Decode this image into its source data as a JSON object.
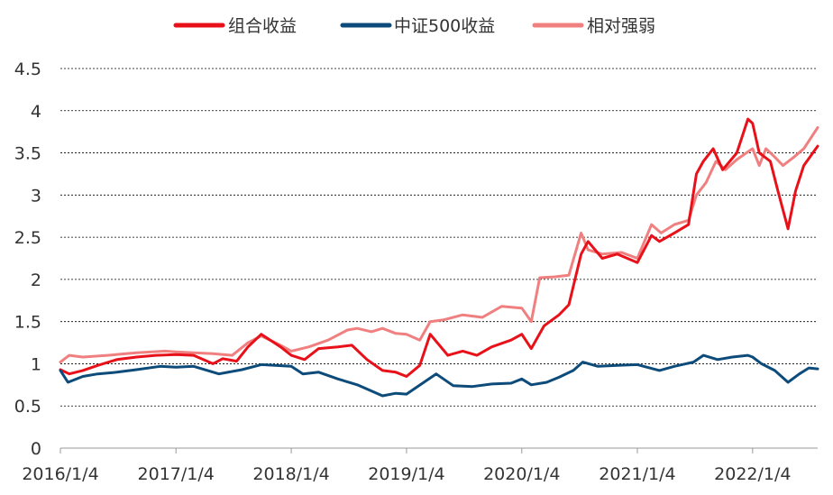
{
  "chart_data": {
    "type": "line",
    "title": "",
    "xlabel": "",
    "ylabel": "",
    "x_tick_labels": [
      "2016/1/4",
      "2017/1/4",
      "2018/1/4",
      "2019/1/4",
      "2020/1/4",
      "2021/1/4",
      "2022/1/4"
    ],
    "x_range": [
      "2016/1/4",
      "2022/7/29"
    ],
    "y_tick_labels": [
      "0",
      "0.5",
      "1",
      "1.5",
      "2",
      "2.5",
      "3",
      "3.5",
      "4",
      "4.5"
    ],
    "y_ticks": [
      0,
      0.5,
      1,
      1.5,
      2,
      2.5,
      3,
      3.5,
      4,
      4.5
    ],
    "ylim": [
      0,
      4.5
    ],
    "grid": "horizontal dashed",
    "legend_position": "top-center",
    "series": [
      {
        "name": "组合收益",
        "color": "#E8111A",
        "points": [
          [
            "2016/1/4",
            0.93
          ],
          [
            "2016/2/1",
            0.88
          ],
          [
            "2016/3/15",
            0.92
          ],
          [
            "2016/5/1",
            0.98
          ],
          [
            "2016/7/1",
            1.05
          ],
          [
            "2016/9/1",
            1.08
          ],
          [
            "2016/11/1",
            1.1
          ],
          [
            "2017/1/4",
            1.11
          ],
          [
            "2017/3/1",
            1.1
          ],
          [
            "2017/5/1",
            1.0
          ],
          [
            "2017/6/1",
            1.06
          ],
          [
            "2017/7/15",
            1.03
          ],
          [
            "2017/8/20",
            1.2
          ],
          [
            "2017/10/1",
            1.35
          ],
          [
            "2017/12/1",
            1.2
          ],
          [
            "2018/1/4",
            1.1
          ],
          [
            "2018/2/15",
            1.05
          ],
          [
            "2018/4/1",
            1.18
          ],
          [
            "2018/6/1",
            1.2
          ],
          [
            "2018/7/15",
            1.22
          ],
          [
            "2018/9/1",
            1.05
          ],
          [
            "2018/10/20",
            0.92
          ],
          [
            "2018/12/1",
            0.9
          ],
          [
            "2019/1/4",
            0.85
          ],
          [
            "2019/2/15",
            0.98
          ],
          [
            "2019/3/20",
            1.35
          ],
          [
            "2019/5/15",
            1.1
          ],
          [
            "2019/7/1",
            1.15
          ],
          [
            "2019/8/15",
            1.1
          ],
          [
            "2019/10/1",
            1.2
          ],
          [
            "2019/12/1",
            1.28
          ],
          [
            "2020/1/4",
            1.35
          ],
          [
            "2020/2/3",
            1.18
          ],
          [
            "2020/3/15",
            1.45
          ],
          [
            "2020/5/1",
            1.58
          ],
          [
            "2020/6/1",
            1.7
          ],
          [
            "2020/7/10",
            2.3
          ],
          [
            "2020/8/1",
            2.45
          ],
          [
            "2020/9/15",
            2.25
          ],
          [
            "2020/11/1",
            2.3
          ],
          [
            "2021/1/4",
            2.2
          ],
          [
            "2021/2/18",
            2.52
          ],
          [
            "2021/3/15",
            2.45
          ],
          [
            "2021/5/1",
            2.55
          ],
          [
            "2021/6/15",
            2.65
          ],
          [
            "2021/7/10",
            3.25
          ],
          [
            "2021/8/1",
            3.4
          ],
          [
            "2021/9/1",
            3.55
          ],
          [
            "2021/10/1",
            3.3
          ],
          [
            "2021/11/15",
            3.5
          ],
          [
            "2021/12/20",
            3.9
          ],
          [
            "2022/1/4",
            3.85
          ],
          [
            "2022/1/25",
            3.5
          ],
          [
            "2022/3/1",
            3.4
          ],
          [
            "2022/3/25",
            3.05
          ],
          [
            "2022/4/26",
            2.6
          ],
          [
            "2022/5/20",
            3.05
          ],
          [
            "2022/6/15",
            3.35
          ],
          [
            "2022/7/29",
            3.58
          ]
        ]
      },
      {
        "name": "中证500收益",
        "color": "#0D4C7A",
        "points": [
          [
            "2016/1/4",
            0.92
          ],
          [
            "2016/1/28",
            0.78
          ],
          [
            "2016/3/15",
            0.85
          ],
          [
            "2016/5/1",
            0.88
          ],
          [
            "2016/7/1",
            0.9
          ],
          [
            "2016/9/1",
            0.93
          ],
          [
            "2016/11/15",
            0.97
          ],
          [
            "2017/1/4",
            0.96
          ],
          [
            "2017/3/1",
            0.97
          ],
          [
            "2017/5/20",
            0.88
          ],
          [
            "2017/8/1",
            0.93
          ],
          [
            "2017/10/1",
            0.99
          ],
          [
            "2018/1/4",
            0.97
          ],
          [
            "2018/2/10",
            0.88
          ],
          [
            "2018/4/1",
            0.9
          ],
          [
            "2018/6/1",
            0.82
          ],
          [
            "2018/8/1",
            0.75
          ],
          [
            "2018/10/20",
            0.62
          ],
          [
            "2018/12/1",
            0.65
          ],
          [
            "2019/1/4",
            0.64
          ],
          [
            "2019/4/8",
            0.88
          ],
          [
            "2019/6/1",
            0.74
          ],
          [
            "2019/8/1",
            0.73
          ],
          [
            "2019/10/1",
            0.76
          ],
          [
            "2019/12/1",
            0.77
          ],
          [
            "2020/1/4",
            0.82
          ],
          [
            "2020/2/3",
            0.75
          ],
          [
            "2020/3/23",
            0.78
          ],
          [
            "2020/5/1",
            0.84
          ],
          [
            "2020/6/15",
            0.92
          ],
          [
            "2020/7/15",
            1.02
          ],
          [
            "2020/9/1",
            0.97
          ],
          [
            "2020/11/1",
            0.98
          ],
          [
            "2021/1/4",
            0.99
          ],
          [
            "2021/3/15",
            0.92
          ],
          [
            "2021/5/1",
            0.97
          ],
          [
            "2021/7/1",
            1.02
          ],
          [
            "2021/8/1",
            1.1
          ],
          [
            "2021/9/15",
            1.05
          ],
          [
            "2021/11/1",
            1.08
          ],
          [
            "2021/12/20",
            1.1
          ],
          [
            "2022/1/4",
            1.08
          ],
          [
            "2022/2/1",
            1.0
          ],
          [
            "2022/3/15",
            0.92
          ],
          [
            "2022/4/26",
            0.78
          ],
          [
            "2022/6/1",
            0.88
          ],
          [
            "2022/7/1",
            0.95
          ],
          [
            "2022/7/29",
            0.94
          ]
        ]
      },
      {
        "name": "相对强弱",
        "color": "#F08080",
        "points": [
          [
            "2016/1/4",
            1.02
          ],
          [
            "2016/2/1",
            1.1
          ],
          [
            "2016/3/15",
            1.08
          ],
          [
            "2016/6/1",
            1.1
          ],
          [
            "2016/9/1",
            1.13
          ],
          [
            "2016/12/1",
            1.15
          ],
          [
            "2017/1/4",
            1.14
          ],
          [
            "2017/3/1",
            1.13
          ],
          [
            "2017/5/1",
            1.12
          ],
          [
            "2017/7/1",
            1.1
          ],
          [
            "2017/8/20",
            1.25
          ],
          [
            "2017/10/1",
            1.33
          ],
          [
            "2017/12/1",
            1.22
          ],
          [
            "2018/1/4",
            1.15
          ],
          [
            "2018/3/1",
            1.2
          ],
          [
            "2018/5/1",
            1.28
          ],
          [
            "2018/7/1",
            1.4
          ],
          [
            "2018/8/1",
            1.42
          ],
          [
            "2018/9/15",
            1.38
          ],
          [
            "2018/10/20",
            1.42
          ],
          [
            "2018/12/1",
            1.36
          ],
          [
            "2019/1/4",
            1.35
          ],
          [
            "2019/2/15",
            1.28
          ],
          [
            "2019/3/20",
            1.5
          ],
          [
            "2019/5/1",
            1.52
          ],
          [
            "2019/7/1",
            1.58
          ],
          [
            "2019/9/1",
            1.55
          ],
          [
            "2019/11/1",
            1.68
          ],
          [
            "2020/1/4",
            1.66
          ],
          [
            "2020/2/3",
            1.5
          ],
          [
            "2020/3/1",
            2.02
          ],
          [
            "2020/4/15",
            2.03
          ],
          [
            "2020/6/1",
            2.05
          ],
          [
            "2020/7/10",
            2.55
          ],
          [
            "2020/8/1",
            2.35
          ],
          [
            "2020/9/15",
            2.3
          ],
          [
            "2020/11/15",
            2.32
          ],
          [
            "2021/1/4",
            2.25
          ],
          [
            "2021/2/18",
            2.65
          ],
          [
            "2021/3/20",
            2.55
          ],
          [
            "2021/5/1",
            2.65
          ],
          [
            "2021/6/15",
            2.7
          ],
          [
            "2021/7/10",
            3.0
          ],
          [
            "2021/8/10",
            3.15
          ],
          [
            "2021/9/10",
            3.4
          ],
          [
            "2021/10/10",
            3.3
          ],
          [
            "2021/11/15",
            3.42
          ],
          [
            "2021/12/15",
            3.5
          ],
          [
            "2022/1/4",
            3.55
          ],
          [
            "2022/1/25",
            3.35
          ],
          [
            "2022/2/15",
            3.55
          ],
          [
            "2022/3/15",
            3.45
          ],
          [
            "2022/4/10",
            3.35
          ],
          [
            "2022/5/15",
            3.45
          ],
          [
            "2022/6/15",
            3.55
          ],
          [
            "2022/7/29",
            3.8
          ]
        ]
      }
    ]
  }
}
